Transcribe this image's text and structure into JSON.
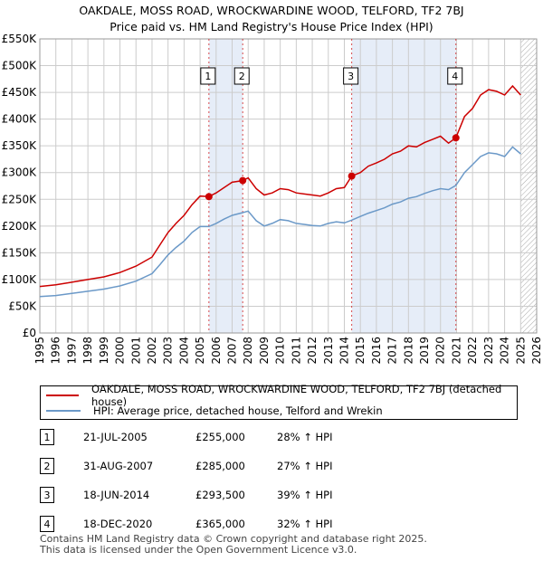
{
  "header": {
    "title_line1": "OAKDALE, MOSS ROAD, WROCKWARDINE WOOD, TELFORD, TF2 7BJ",
    "title_line2": "Price paid vs. HM Land Registry's House Price Index (HPI)"
  },
  "legend": {
    "red_label": "OAKDALE, MOSS ROAD, WROCKWARDINE WOOD, TELFORD, TF2 7BJ (detached house)",
    "blue_label": "HPI: Average price, detached house, Telford and Wrekin"
  },
  "sales": [
    {
      "num": "1",
      "date": "21-JUL-2005",
      "price": "£255,000",
      "hpi": "28% ↑ HPI"
    },
    {
      "num": "2",
      "date": "31-AUG-2007",
      "price": "£285,000",
      "hpi": "27% ↑ HPI"
    },
    {
      "num": "3",
      "date": "18-JUN-2014",
      "price": "£293,500",
      "hpi": "39% ↑ HPI"
    },
    {
      "num": "4",
      "date": "18-DEC-2020",
      "price": "£365,000",
      "hpi": "32% ↑ HPI"
    }
  ],
  "footer": {
    "line1": "Contains HM Land Registry data © Crown copyright and database right 2025.",
    "line2": "This data is licensed under the Open Government Licence v3.0."
  },
  "colors": {
    "red": "#cc0000",
    "blue": "#6b99c8",
    "grid": "#cccccc",
    "shade": "#dce6f5"
  },
  "chart_data": {
    "type": "line",
    "title": "OAKDALE, MOSS ROAD, WROCKWARDINE WOOD, TELFORD, TF2 7BJ",
    "subtitle": "Price paid vs. HM Land Registry's House Price Index (HPI)",
    "xlabel": "",
    "ylabel": "",
    "xlim": [
      1995,
      2026
    ],
    "ylim": [
      0,
      550000
    ],
    "x_ticks": [
      "1995",
      "1996",
      "1997",
      "1998",
      "1999",
      "2000",
      "2001",
      "2002",
      "2003",
      "2004",
      "2005",
      "2006",
      "2007",
      "2008",
      "2009",
      "2010",
      "2011",
      "2012",
      "2013",
      "2014",
      "2015",
      "2016",
      "2017",
      "2018",
      "2019",
      "2020",
      "2021",
      "2022",
      "2023",
      "2024",
      "2025",
      "2026"
    ],
    "y_ticks": [
      {
        "value": 0,
        "label": "£0"
      },
      {
        "value": 50000,
        "label": "£50K"
      },
      {
        "value": 100000,
        "label": "£100K"
      },
      {
        "value": 150000,
        "label": "£150K"
      },
      {
        "value": 200000,
        "label": "£200K"
      },
      {
        "value": 250000,
        "label": "£250K"
      },
      {
        "value": 300000,
        "label": "£300K"
      },
      {
        "value": 350000,
        "label": "£350K"
      },
      {
        "value": 400000,
        "label": "£400K"
      },
      {
        "value": 450000,
        "label": "£450K"
      },
      {
        "value": 500000,
        "label": "£500K"
      },
      {
        "value": 550000,
        "label": "£550K"
      }
    ],
    "grid": true,
    "shaded_ranges": [
      [
        2005.55,
        2007.66
      ],
      [
        2014.46,
        2020.96
      ]
    ],
    "hatched_from": 2025.0,
    "series": [
      {
        "name": "OAKDALE, MOSS ROAD, WROCKWARDINE WOOD, TELFORD, TF2 7BJ (detached house)",
        "color": "#cc0000",
        "x": [
          1995,
          1996,
          1997,
          1998,
          1999,
          2000,
          2001,
          2002,
          2002.5,
          2003,
          2003.5,
          2004,
          2004.5,
          2005,
          2005.55,
          2006,
          2006.5,
          2007,
          2007.66,
          2008,
          2008.5,
          2009,
          2009.5,
          2010,
          2010.5,
          2011,
          2011.5,
          2012,
          2012.5,
          2013,
          2013.5,
          2014,
          2014.46,
          2015,
          2015.5,
          2016,
          2016.5,
          2017,
          2017.5,
          2018,
          2018.5,
          2019,
          2019.5,
          2020,
          2020.5,
          2020.96,
          2021.5,
          2022,
          2022.5,
          2023,
          2023.5,
          2024,
          2024.5,
          2025
        ],
        "y": [
          87000,
          90000,
          95000,
          100000,
          105000,
          113000,
          125000,
          142000,
          165000,
          188000,
          205000,
          220000,
          240000,
          256000,
          255000,
          262000,
          272000,
          282000,
          285000,
          290000,
          270000,
          258000,
          262000,
          270000,
          268000,
          262000,
          260000,
          258000,
          256000,
          262000,
          270000,
          272000,
          293500,
          300000,
          312000,
          318000,
          325000,
          335000,
          340000,
          350000,
          348000,
          356000,
          362000,
          368000,
          355000,
          365000,
          405000,
          420000,
          445000,
          455000,
          452000,
          445000,
          462000,
          445000
        ]
      },
      {
        "name": "HPI: Average price, detached house, Telford and Wrekin",
        "color": "#6b99c8",
        "x": [
          1995,
          1996,
          1997,
          1998,
          1999,
          2000,
          2001,
          2002,
          2002.5,
          2003,
          2003.5,
          2004,
          2004.5,
          2005,
          2005.55,
          2006,
          2006.5,
          2007,
          2007.66,
          2008,
          2008.5,
          2009,
          2009.5,
          2010,
          2010.5,
          2011,
          2011.5,
          2012,
          2012.5,
          2013,
          2013.5,
          2014,
          2014.46,
          2015,
          2015.5,
          2016,
          2016.5,
          2017,
          2017.5,
          2018,
          2018.5,
          2019,
          2019.5,
          2020,
          2020.5,
          2020.96,
          2021.5,
          2022,
          2022.5,
          2023,
          2023.5,
          2024,
          2024.5,
          2025
        ],
        "y": [
          68000,
          70000,
          74000,
          78000,
          82000,
          88000,
          97000,
          111000,
          128000,
          146000,
          160000,
          172000,
          188000,
          199000,
          199000,
          205000,
          213000,
          220000,
          225000,
          228000,
          210000,
          200000,
          205000,
          212000,
          210000,
          205000,
          203000,
          201000,
          200000,
          205000,
          208000,
          206000,
          211000,
          218000,
          224000,
          229000,
          234000,
          241000,
          245000,
          252000,
          255000,
          261000,
          266000,
          270000,
          268000,
          276000,
          300000,
          315000,
          330000,
          337000,
          335000,
          330000,
          348000,
          335000
        ]
      }
    ],
    "markers": [
      {
        "label": "1",
        "x": 2005.55,
        "y": 255000
      },
      {
        "label": "2",
        "x": 2007.66,
        "y": 285000
      },
      {
        "label": "3",
        "x": 2014.46,
        "y": 293500
      },
      {
        "label": "4",
        "x": 2020.96,
        "y": 365000
      }
    ]
  }
}
